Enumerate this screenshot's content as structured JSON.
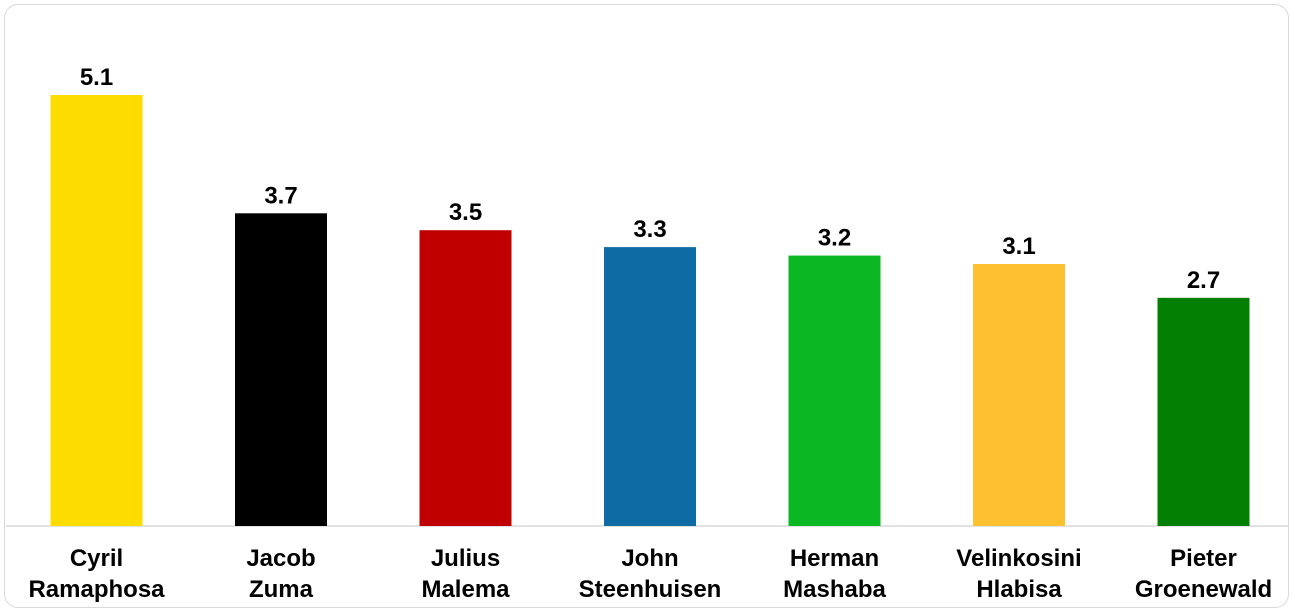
{
  "chart_data": {
    "type": "bar",
    "title": "",
    "xlabel": "",
    "ylabel": "",
    "ylim": [
      0,
      5.1
    ],
    "grid": false,
    "legend": "none",
    "categories": [
      [
        "Cyril",
        "Ramaphosa"
      ],
      [
        "Jacob",
        "Zuma"
      ],
      [
        "Julius",
        "Malema"
      ],
      [
        "John",
        "Steenhuisen"
      ],
      [
        "Herman",
        "Mashaba"
      ],
      [
        "Velinkosini",
        "Hlabisa"
      ],
      [
        "Pieter",
        "Groenewald"
      ]
    ],
    "values": [
      5.1,
      3.7,
      3.5,
      3.3,
      3.2,
      3.1,
      2.7
    ],
    "value_labels": [
      "5.1",
      "3.7",
      "3.5",
      "3.3",
      "3.2",
      "3.1",
      "2.7"
    ],
    "colors": [
      "#FDDC02",
      "#000000",
      "#C00000",
      "#0E6BA3",
      "#0CB724",
      "#FDC12F",
      "#037F04"
    ]
  }
}
